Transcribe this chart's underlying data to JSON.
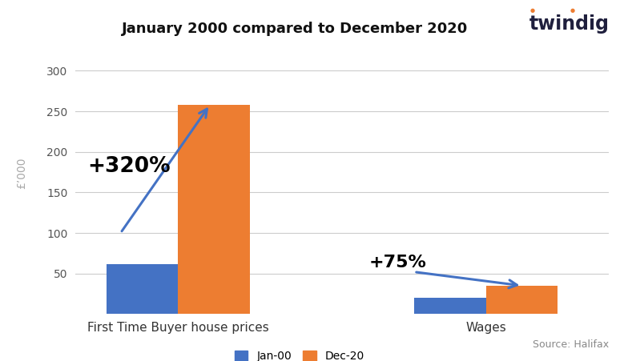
{
  "title": "January 2000 compared to December 2020",
  "categories": [
    "First Time Buyer house prices",
    "Wages"
  ],
  "jan00_values": [
    62,
    20
  ],
  "dec20_values": [
    258,
    35
  ],
  "bar_color_jan": "#4472C4",
  "bar_color_dec": "#ED7D31",
  "ylabel": "£’000",
  "ylim": [
    0,
    325
  ],
  "yticks": [
    0,
    50,
    100,
    150,
    200,
    250,
    300
  ],
  "legend_labels": [
    "Jan-00",
    "Dec-20"
  ],
  "annotation1_text": "+320%",
  "annotation2_text": "+75%",
  "source_text": "Source: Halifax",
  "twindig_text": "twindig",
  "background_color": "#ffffff",
  "bar_width": 0.35,
  "sidebar_color": "#000000",
  "sidebar_label_color": "#888888"
}
